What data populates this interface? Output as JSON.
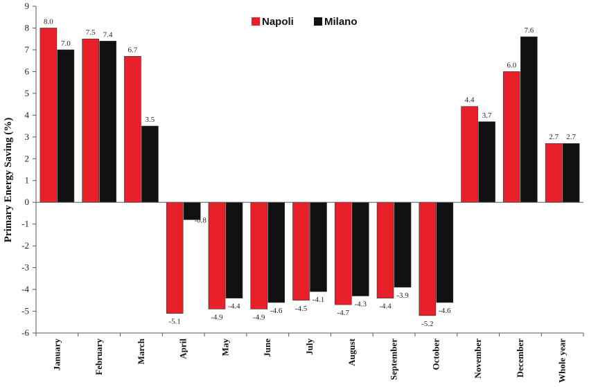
{
  "chart_data": {
    "type": "bar",
    "title": "",
    "xlabel": "",
    "ylabel": "Primary Energy Saving (%)",
    "ylim": [
      -6,
      9
    ],
    "yticks": [
      9,
      8,
      7,
      6,
      5,
      4,
      3,
      2,
      1,
      0,
      -1,
      -2,
      -3,
      -4,
      -5,
      -6
    ],
    "grid": false,
    "legend_position": "top-center",
    "categories": [
      "January",
      "February",
      "March",
      "April",
      "May",
      "June",
      "July",
      "August",
      "September",
      "October",
      "November",
      "December",
      "Whole year"
    ],
    "series": [
      {
        "name": "Napoli",
        "color": "#e8202a",
        "values": [
          8.0,
          7.5,
          6.7,
          -5.1,
          -4.9,
          -4.9,
          -4.5,
          -4.7,
          -4.4,
          -5.2,
          4.4,
          6.0,
          2.7
        ],
        "labels": [
          "8.0",
          "7.5",
          "6.7",
          "-5.1",
          "-4.9",
          "-4.9",
          "-4.5",
          "-4.7",
          "-4.4",
          "-5.2",
          "4.4",
          "6.0",
          "2.7"
        ]
      },
      {
        "name": "Milano",
        "color": "#111111",
        "values": [
          7.0,
          7.4,
          3.5,
          -0.8,
          -4.4,
          -4.6,
          -4.1,
          -4.3,
          -3.9,
          -4.6,
          3.7,
          7.6,
          2.7
        ],
        "labels": [
          "7.0",
          "7.4",
          "3.5",
          "-0.8",
          "-4.4",
          "-4.6",
          "-4.1",
          "-4.3",
          "-3.9",
          "-4.6",
          "3.7",
          "7.6",
          "2.7"
        ]
      }
    ]
  }
}
